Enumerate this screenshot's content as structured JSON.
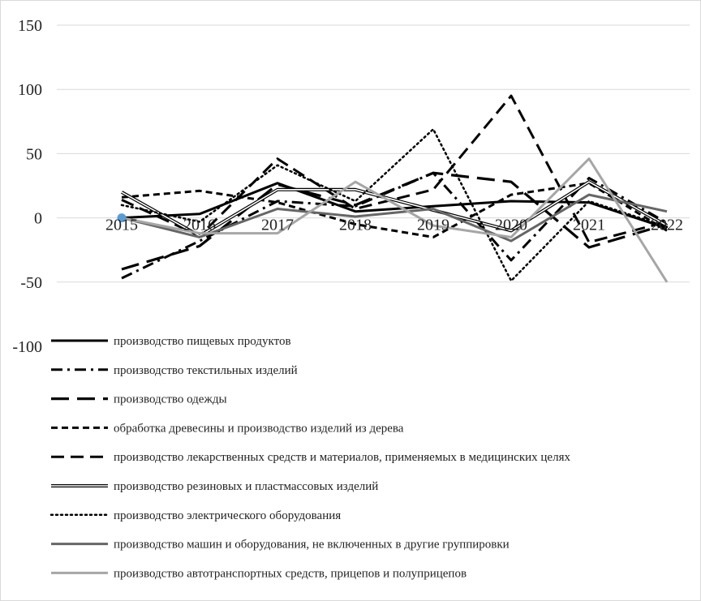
{
  "chart_data": {
    "type": "line",
    "x": [
      "2015",
      "2016",
      "2017",
      "2018",
      "2019",
      "2020",
      "2021",
      "2022"
    ],
    "ylim": [
      -100,
      150
    ],
    "yticks": [
      150,
      100,
      50,
      0,
      -50,
      -100
    ],
    "grid": true,
    "legend_position": "bottom",
    "series": [
      {
        "name": "производство пищевых продуктов",
        "values": [
          0,
          3,
          27,
          5,
          9,
          13,
          12,
          -8
        ],
        "color": "#000000",
        "style": "solid-thick"
      },
      {
        "name": "производство текстильных изделий",
        "values": [
          -47,
          -18,
          13,
          9,
          35,
          -33,
          31,
          -4
        ],
        "color": "#000000",
        "style": "dash-dot"
      },
      {
        "name": "производство одежды",
        "values": [
          -40,
          -22,
          26,
          10,
          35,
          28,
          -23,
          -5
        ],
        "color": "#000000",
        "style": "long-dash"
      },
      {
        "name": "обработка древесины и производство изделий из дерева",
        "values": [
          16,
          21,
          12,
          -5,
          -15,
          18,
          27,
          -10
        ],
        "color": "#000000",
        "style": "short-dash"
      },
      {
        "name": "производство лекарственных средств и материалов, применяемых в медицинских целях",
        "values": [
          14,
          -14,
          46,
          7,
          22,
          95,
          -19,
          -3
        ],
        "color": "#000000",
        "style": "dash"
      },
      {
        "name": "производство резиновых и пластмассовых изделий",
        "values": [
          20,
          -14,
          22,
          22,
          6,
          -10,
          28,
          -6
        ],
        "color": "#000000",
        "style": "double"
      },
      {
        "name": "производство электрического оборудования",
        "values": [
          10,
          -3,
          41,
          13,
          69,
          -49,
          13,
          -7
        ],
        "color": "#000000",
        "style": "dotted"
      },
      {
        "name": "производство машин и оборудования, не включенных в другие группировки",
        "values": [
          0,
          -15,
          7,
          1,
          7,
          -18,
          18,
          5
        ],
        "color": "#666666",
        "style": "solid"
      },
      {
        "name": "производство автотранспортных средств, прицепов и полуприцепов",
        "values": [
          0,
          -12,
          -12,
          28,
          -6,
          -15,
          46,
          -50
        ],
        "color": "#a6a6a6",
        "style": "solid"
      }
    ]
  }
}
